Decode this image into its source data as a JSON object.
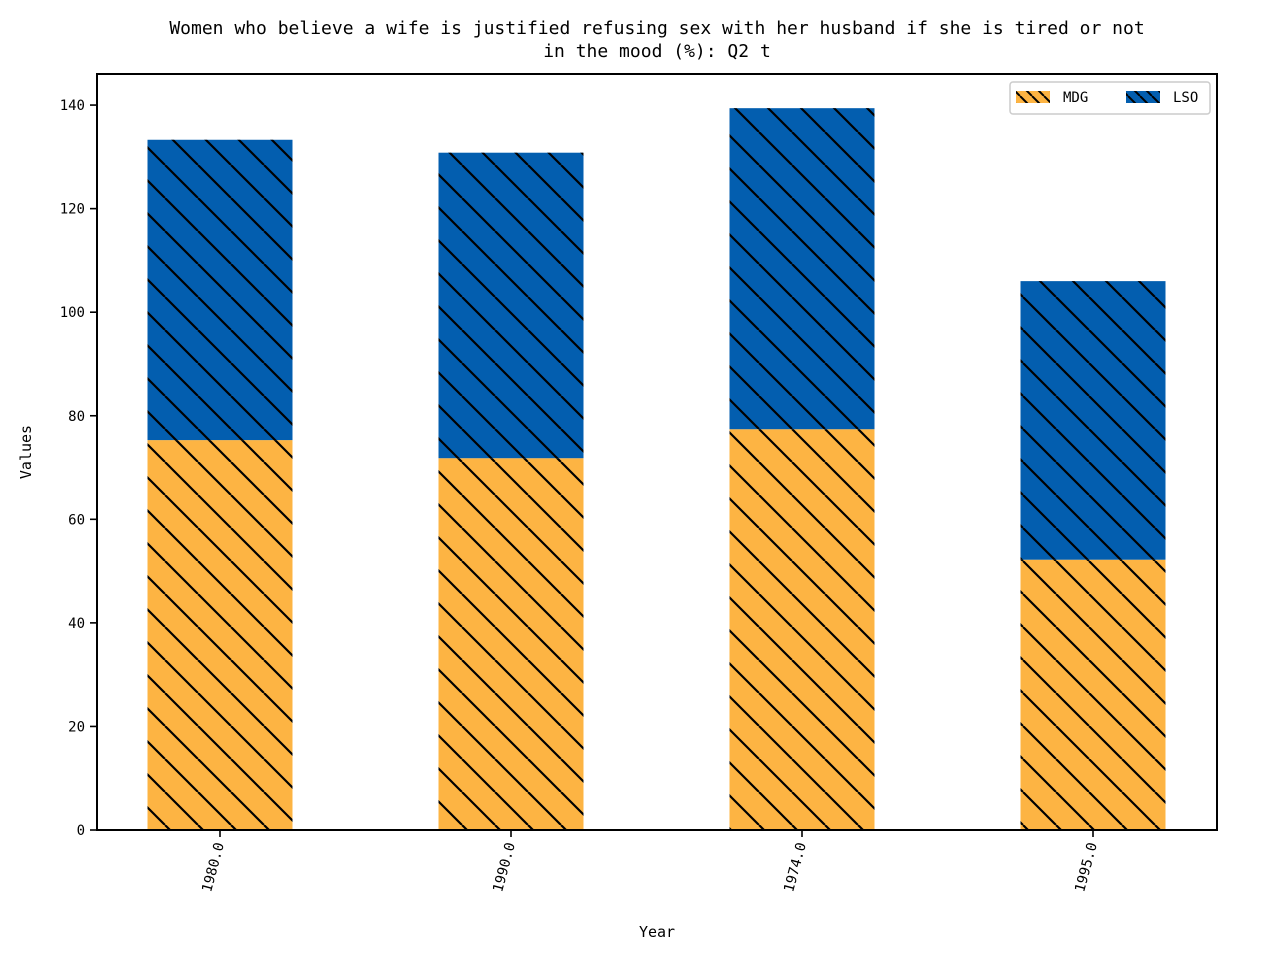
{
  "chart_data": {
    "type": "bar",
    "stacked": true,
    "title_lines": [
      "Women who believe a wife is justified refusing sex with her husband if she is tired or not",
      "in the mood (%): Q2 t"
    ],
    "xlabel": "Year",
    "ylabel": "Values",
    "categories": [
      "1980.0",
      "1990.0",
      "1974.0",
      "1995.0"
    ],
    "series": [
      {
        "name": "MDG",
        "color": "#FDB443",
        "values": [
          75.3,
          71.8,
          77.4,
          52.2
        ]
      },
      {
        "name": "LSO",
        "color": "#035EAF",
        "values": [
          58.0,
          59.0,
          62.0,
          53.8
        ]
      }
    ],
    "ylim": [
      0,
      146
    ],
    "yticks": [
      0,
      20,
      40,
      60,
      80,
      100,
      120,
      140
    ],
    "grid": false,
    "legend_position": "top-right",
    "hatch": "diagonal"
  }
}
